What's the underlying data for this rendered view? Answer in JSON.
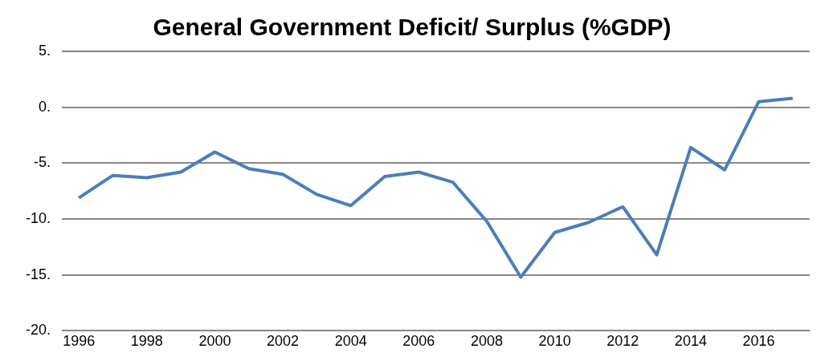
{
  "chart_data": {
    "type": "line",
    "title": "General Government Deficit/ Surplus (%GDP)",
    "categories": [
      "1996",
      null,
      "1998",
      null,
      "2000",
      null,
      "2002",
      null,
      "2004",
      null,
      "2006",
      null,
      "2008",
      null,
      "2010",
      null,
      "2012",
      null,
      "2014",
      null,
      "2016",
      null
    ],
    "series": [
      {
        "color": "#4a7ebb",
        "values": [
          -8.1,
          -6.1,
          -6.3,
          -5.8,
          -4.0,
          -5.5,
          -6.0,
          -7.8,
          -8.8,
          -6.2,
          -5.8,
          -6.7,
          -10.2,
          -15.2,
          -11.2,
          -10.3,
          -8.9,
          -13.2,
          -3.6,
          -5.6,
          0.5,
          0.8
        ]
      }
    ],
    "ylim": [
      -20,
      5
    ],
    "yticks": [
      {
        "value": -20,
        "label": "-20."
      },
      {
        "value": -15,
        "label": "-15."
      },
      {
        "value": -10,
        "label": "-10."
      },
      {
        "value": -5,
        "label": "-5."
      },
      {
        "value": 0,
        "label": "0."
      },
      {
        "value": 5,
        "label": "5."
      }
    ],
    "grid": "y",
    "legend": false,
    "marker": "none",
    "line_style": "solid"
  }
}
